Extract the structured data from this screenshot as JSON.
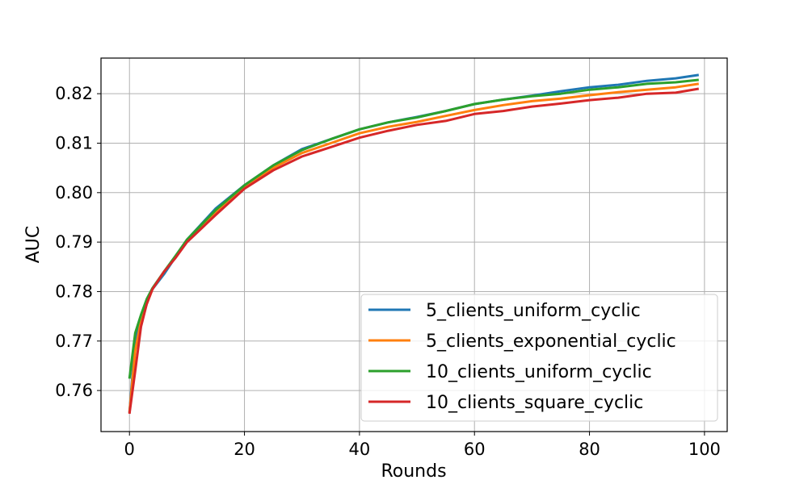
{
  "chart_data": {
    "type": "line",
    "title": "",
    "xlabel": "Rounds",
    "ylabel": "AUC",
    "xlim": [
      -4.95,
      103.95
    ],
    "ylim": [
      0.7517,
      0.8272
    ],
    "xticks": [
      0,
      20,
      40,
      60,
      80,
      100
    ],
    "xtick_labels": [
      "0",
      "20",
      "40",
      "60",
      "80",
      "100"
    ],
    "yticks": [
      0.76,
      0.77,
      0.78,
      0.79,
      0.8,
      0.81,
      0.82
    ],
    "ytick_labels": [
      "0.76",
      "0.77",
      "0.78",
      "0.79",
      "0.80",
      "0.81",
      "0.82"
    ],
    "grid": true,
    "legend_position": "lower-right",
    "x": [
      0,
      1,
      2,
      3,
      4,
      6,
      8,
      10,
      15,
      20,
      25,
      30,
      35,
      40,
      45,
      50,
      55,
      60,
      65,
      70,
      75,
      80,
      85,
      90,
      95,
      99
    ],
    "series": [
      {
        "name": "5_clients_uniform_cyclic",
        "color": "#1f77b4",
        "values": [
          0.7555,
          0.77,
          0.775,
          0.778,
          0.7805,
          0.7835,
          0.787,
          0.7905,
          0.7968,
          0.8015,
          0.8055,
          0.8088,
          0.8108,
          0.8128,
          0.8142,
          0.8153,
          0.8165,
          0.8179,
          0.8188,
          0.8196,
          0.8205,
          0.8213,
          0.8218,
          0.8226,
          0.8231,
          0.8238
        ]
      },
      {
        "name": "5_clients_exponential_cyclic",
        "color": "#ff7f0e",
        "values": [
          0.7555,
          0.768,
          0.774,
          0.7775,
          0.7805,
          0.784,
          0.787,
          0.7903,
          0.796,
          0.801,
          0.805,
          0.808,
          0.81,
          0.812,
          0.8133,
          0.8143,
          0.8155,
          0.8167,
          0.8177,
          0.8185,
          0.819,
          0.8197,
          0.8203,
          0.8208,
          0.8213,
          0.822
        ]
      },
      {
        "name": "10_clients_uniform_cyclic",
        "color": "#2ca02c",
        "values": [
          0.7624,
          0.7716,
          0.7753,
          0.7785,
          0.7807,
          0.784,
          0.7872,
          0.7905,
          0.7965,
          0.8015,
          0.8055,
          0.8086,
          0.8108,
          0.8128,
          0.8142,
          0.8152,
          0.8165,
          0.8179,
          0.8188,
          0.8195,
          0.82,
          0.8208,
          0.8213,
          0.822,
          0.8223,
          0.8228
        ]
      },
      {
        "name": "10_clients_square_cyclic",
        "color": "#d62728",
        "values": [
          0.7553,
          0.7639,
          0.7729,
          0.7775,
          0.7805,
          0.784,
          0.7868,
          0.79,
          0.7955,
          0.8008,
          0.8045,
          0.8073,
          0.8092,
          0.8111,
          0.8125,
          0.8137,
          0.8145,
          0.8159,
          0.8165,
          0.8174,
          0.818,
          0.8187,
          0.8192,
          0.82,
          0.8202,
          0.821
        ]
      }
    ]
  }
}
